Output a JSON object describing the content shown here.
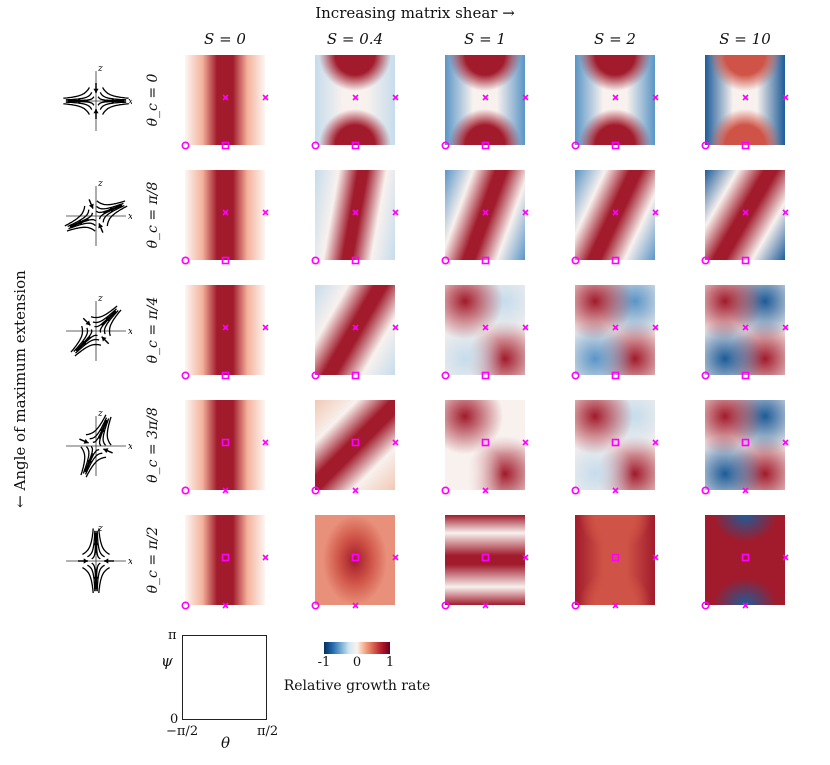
{
  "titles": {
    "top": "Increasing matrix shear →",
    "side": "← Angle of maximum extension"
  },
  "columns": [
    "S = 0",
    "S = 0.4",
    "S = 1",
    "S = 2",
    "S = 10"
  ],
  "rows": [
    "θ_c = 0",
    "θ_c = π/8",
    "θ_c = π/4",
    "θ_c = 3π/8",
    "θ_c = π/2"
  ],
  "legend": {
    "y_top": "π",
    "y_bottom": "0",
    "y_label": "ψ",
    "x_left": "−π/2",
    "x_right": "π/2",
    "x_label": "θ"
  },
  "colorbar": {
    "ticks": [
      "-1",
      "0",
      "1"
    ],
    "label": "Relative growth rate",
    "colors": [
      "#053061",
      "#2166ac",
      "#d1e5f0",
      "#fbf3ef",
      "#f4a582",
      "#b2182b",
      "#67001f"
    ]
  },
  "marker_color": "#ff00ff"
}
